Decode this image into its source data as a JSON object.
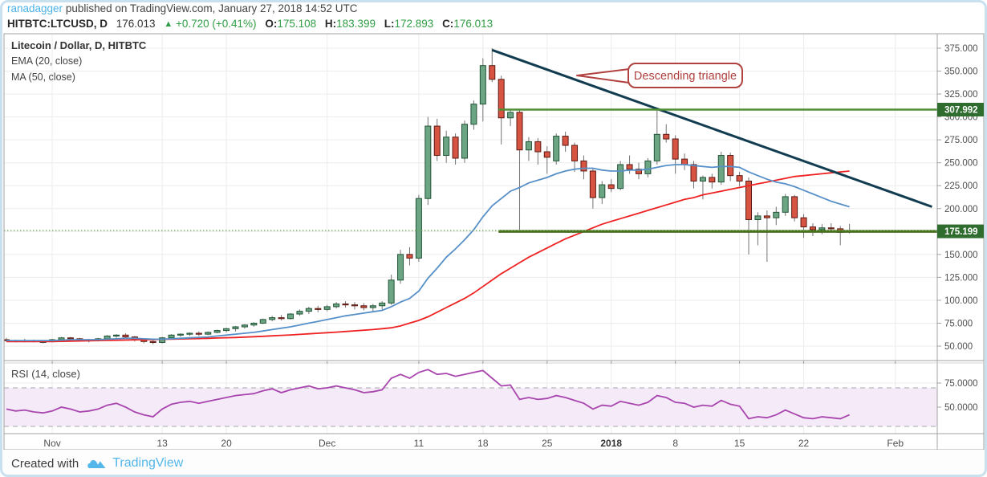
{
  "header": {
    "byline": {
      "username": "ranadagger",
      "rest": " published on TradingView.com, January 27, 2018 14:52 UTC"
    },
    "symbol_line": {
      "symbol": "HITBTC:LTCUSD, D",
      "last": "176.013",
      "up_arrow": "▲",
      "change": "+0.720 (+0.41%)",
      "o_label": "O:",
      "o": "175.108",
      "h_label": "H:",
      "h": "183.399",
      "l_label": "L:",
      "l": "172.893",
      "c_label": "C:",
      "c": "176.013"
    }
  },
  "legend": {
    "title": "Litecoin / Dollar, D, HITBTC",
    "ema": "EMA (20, close)",
    "ma": "MA (50, close)"
  },
  "rsi_label": "RSI (14, close)",
  "footer": {
    "created_with": "Created with",
    "brand": "TradingView"
  },
  "colors": {
    "up_fill": "#6ba583",
    "up_border": "#225437",
    "down_fill": "#d75442",
    "down_border": "#5b1a13",
    "wick": "#737375",
    "ema20": "#5790c8",
    "ma50": "#ee2222",
    "rsi": "#a845ae",
    "trendline": "#123c50",
    "resistance_ray": "#4d8f33",
    "support_ray": "#486f1e",
    "last_price_dotted": "#6aa84f",
    "badge_bg": "#2f6d2f",
    "badge_text": "#ffffff",
    "accent_green": "#2f9e44",
    "brand_blue": "#54b6e9",
    "callout": "#b0413e",
    "rsi_band_fill": "#f5eaf7",
    "rsi_band_edge": "#b6b6ba",
    "grid": "#ececec",
    "axis_line": "#a0a0a0",
    "axis_text": "#4f4f4f"
  },
  "chart_data": {
    "type": "candlestick",
    "title": "Litecoin / Dollar, D, HITBTC",
    "interval": "D",
    "ylim": [
      50,
      375
    ],
    "y_ticks": [
      375,
      350,
      325,
      300,
      275,
      250,
      225,
      200,
      175,
      150,
      125,
      100,
      75,
      50
    ],
    "y_tick_decimals": 3,
    "rsi_ticks": [
      75,
      50
    ],
    "rsi_tick_decimals": 4,
    "rsi_band": [
      30,
      70
    ],
    "grid": true,
    "x_labels": [
      {
        "label": "Nov",
        "i": 5,
        "bold": false
      },
      {
        "label": "13",
        "i": 17,
        "bold": false
      },
      {
        "label": "20",
        "i": 24,
        "bold": false
      },
      {
        "label": "Dec",
        "i": 35,
        "bold": false
      },
      {
        "label": "11",
        "i": 45,
        "bold": false
      },
      {
        "label": "18",
        "i": 52,
        "bold": false
      },
      {
        "label": "25",
        "i": 59,
        "bold": false
      },
      {
        "label": "2018",
        "i": 66,
        "bold": true
      },
      {
        "label": "8",
        "i": 73,
        "bold": false
      },
      {
        "label": "15",
        "i": 80,
        "bold": false
      },
      {
        "label": "22",
        "i": 87,
        "bold": false
      },
      {
        "label": "Feb",
        "i": 97,
        "bold": false
      }
    ],
    "candles": [
      [
        57,
        59,
        55,
        56
      ],
      [
        56,
        57,
        54,
        55
      ],
      [
        55,
        58,
        54,
        56
      ],
      [
        56,
        57,
        54,
        55
      ],
      [
        55,
        56,
        53,
        55
      ],
      [
        55,
        58,
        54,
        57
      ],
      [
        57,
        60,
        55,
        59
      ],
      [
        59,
        60,
        56,
        58
      ],
      [
        58,
        59,
        55,
        56
      ],
      [
        56,
        58,
        54,
        57
      ],
      [
        57,
        59,
        55,
        58
      ],
      [
        58,
        62,
        57,
        61
      ],
      [
        61,
        63,
        59,
        62
      ],
      [
        62,
        64,
        58,
        60
      ],
      [
        60,
        61,
        55,
        57
      ],
      [
        57,
        58,
        53,
        55
      ],
      [
        55,
        57,
        52,
        54
      ],
      [
        54,
        60,
        53,
        59
      ],
      [
        59,
        63,
        58,
        62
      ],
      [
        62,
        64,
        60,
        63
      ],
      [
        63,
        65,
        61,
        64
      ],
      [
        64,
        66,
        61,
        63
      ],
      [
        63,
        66,
        62,
        65
      ],
      [
        65,
        68,
        64,
        67
      ],
      [
        67,
        70,
        65,
        69
      ],
      [
        69,
        72,
        66,
        71
      ],
      [
        71,
        74,
        69,
        73
      ],
      [
        73,
        76,
        71,
        75
      ],
      [
        75,
        80,
        74,
        79
      ],
      [
        79,
        83,
        77,
        81
      ],
      [
        81,
        84,
        78,
        80
      ],
      [
        80,
        86,
        79,
        85
      ],
      [
        85,
        90,
        83,
        88
      ],
      [
        88,
        93,
        85,
        91
      ],
      [
        91,
        94,
        87,
        90
      ],
      [
        90,
        95,
        88,
        93
      ],
      [
        93,
        98,
        91,
        96
      ],
      [
        96,
        99,
        92,
        95
      ],
      [
        95,
        98,
        90,
        94
      ],
      [
        94,
        97,
        89,
        92
      ],
      [
        92,
        96,
        88,
        94
      ],
      [
        94,
        99,
        90,
        97
      ],
      [
        97,
        128,
        95,
        122
      ],
      [
        122,
        155,
        118,
        150
      ],
      [
        150,
        158,
        138,
        146
      ],
      [
        146,
        215,
        142,
        211
      ],
      [
        211,
        300,
        204,
        290
      ],
      [
        290,
        298,
        252,
        258
      ],
      [
        258,
        285,
        250,
        278
      ],
      [
        278,
        282,
        248,
        255
      ],
      [
        255,
        296,
        250,
        292
      ],
      [
        292,
        318,
        286,
        314
      ],
      [
        314,
        364,
        295,
        356
      ],
      [
        356,
        375,
        338,
        341
      ],
      [
        341,
        345,
        270,
        299
      ],
      [
        299,
        308,
        290,
        305
      ],
      [
        305,
        309,
        177,
        264
      ],
      [
        264,
        278,
        252,
        273
      ],
      [
        273,
        277,
        248,
        262
      ],
      [
        262,
        268,
        238,
        256
      ],
      [
        252,
        282,
        248,
        279
      ],
      [
        279,
        284,
        262,
        269
      ],
      [
        269,
        272,
        240,
        252
      ],
      [
        252,
        258,
        232,
        241
      ],
      [
        241,
        244,
        200,
        212
      ],
      [
        212,
        230,
        205,
        226
      ],
      [
        226,
        232,
        218,
        222
      ],
      [
        222,
        252,
        220,
        248
      ],
      [
        248,
        258,
        238,
        243
      ],
      [
        243,
        250,
        232,
        238
      ],
      [
        238,
        255,
        234,
        252
      ],
      [
        252,
        308,
        248,
        281
      ],
      [
        281,
        292,
        272,
        276
      ],
      [
        276,
        280,
        238,
        254
      ],
      [
        254,
        260,
        242,
        248
      ],
      [
        248,
        252,
        222,
        230
      ],
      [
        230,
        236,
        210,
        234
      ],
      [
        234,
        238,
        222,
        229
      ],
      [
        229,
        262,
        226,
        258
      ],
      [
        258,
        261,
        230,
        236
      ],
      [
        236,
        240,
        224,
        230
      ],
      [
        230,
        234,
        150,
        188
      ],
      [
        188,
        196,
        160,
        192
      ],
      [
        192,
        198,
        142,
        190
      ],
      [
        190,
        202,
        182,
        196
      ],
      [
        196,
        216,
        192,
        213
      ],
      [
        213,
        215,
        186,
        190
      ],
      [
        190,
        194,
        168,
        180
      ],
      [
        180,
        184,
        170,
        177
      ],
      [
        177,
        183,
        172,
        179
      ],
      [
        179,
        184,
        174,
        178
      ],
      [
        178,
        181,
        160,
        174
      ],
      [
        175.108,
        183.399,
        172.893,
        176.013
      ]
    ],
    "ema20": [
      56,
      56,
      56,
      56,
      56,
      56,
      56.5,
      57,
      57,
      57,
      57,
      57.5,
      58,
      58.5,
      58.5,
      58,
      57.5,
      57.5,
      58,
      58.5,
      59,
      59.5,
      60,
      61,
      62,
      63,
      64,
      65,
      66.5,
      68,
      69.5,
      71,
      73,
      75,
      77,
      79,
      81,
      83,
      84.5,
      86,
      87.5,
      89,
      93,
      98,
      102,
      110,
      124,
      135,
      147,
      156,
      166,
      177,
      191,
      203,
      211,
      219,
      223,
      228,
      231,
      234,
      238,
      241,
      243,
      244,
      244,
      242,
      241,
      241,
      242,
      242,
      243,
      245,
      247,
      248,
      248,
      247,
      246,
      245,
      246,
      246,
      245,
      240,
      236,
      232,
      229,
      227,
      224,
      220,
      216,
      212,
      208,
      205,
      202
    ],
    "ma50": [
      55,
      55,
      55,
      55,
      55,
      55,
      55.2,
      55.4,
      55.6,
      55.8,
      56,
      56.2,
      56.4,
      56.6,
      56.8,
      57,
      57.2,
      57.4,
      57.6,
      57.8,
      58,
      58.2,
      58.5,
      58.8,
      59.1,
      59.4,
      59.8,
      60.2,
      60.7,
      61.2,
      61.7,
      62.2,
      62.8,
      63.4,
      64,
      64.6,
      65.2,
      65.9,
      66.6,
      67.3,
      68,
      69,
      70,
      72,
      75,
      78,
      82,
      87,
      92,
      97,
      102,
      108,
      115,
      122,
      129,
      135,
      141,
      147,
      152,
      157,
      162,
      167,
      171,
      175,
      179,
      183,
      186,
      189,
      192,
      195,
      198,
      201,
      204,
      207,
      210,
      212,
      215,
      217,
      219,
      221,
      223,
      225,
      227,
      229,
      231,
      233,
      235,
      236,
      237,
      238,
      239,
      240,
      241
    ],
    "rsi14": [
      48,
      46,
      47,
      45,
      44,
      46,
      50,
      48,
      45,
      46,
      48,
      52,
      54,
      50,
      45,
      42,
      40,
      48,
      53,
      55,
      56,
      54,
      56,
      58,
      60,
      62,
      63,
      64,
      67,
      69,
      65,
      68,
      70,
      72,
      69,
      70,
      72,
      70,
      68,
      65,
      66,
      68,
      80,
      84,
      80,
      86,
      89,
      84,
      85,
      82,
      84,
      86,
      88,
      80,
      72,
      73,
      58,
      60,
      58,
      59,
      62,
      60,
      57,
      54,
      48,
      52,
      51,
      56,
      54,
      52,
      55,
      62,
      60,
      55,
      54,
      50,
      52,
      51,
      57,
      53,
      51,
      38,
      40,
      39,
      42,
      47,
      43,
      39,
      38,
      40,
      39,
      38,
      42
    ],
    "overlays": {
      "trendline": {
        "i1": 53,
        "p1": 373,
        "i2": 101,
        "p2": 202
      },
      "resistance": {
        "price": 307.992,
        "label": "307.992",
        "start_i": 53.7
      },
      "support": {
        "price": 175.199,
        "label": "175.199",
        "start_i": 53.7
      },
      "last_price": {
        "price": 176.013
      },
      "callout": {
        "text": "Descending triangle"
      }
    }
  }
}
